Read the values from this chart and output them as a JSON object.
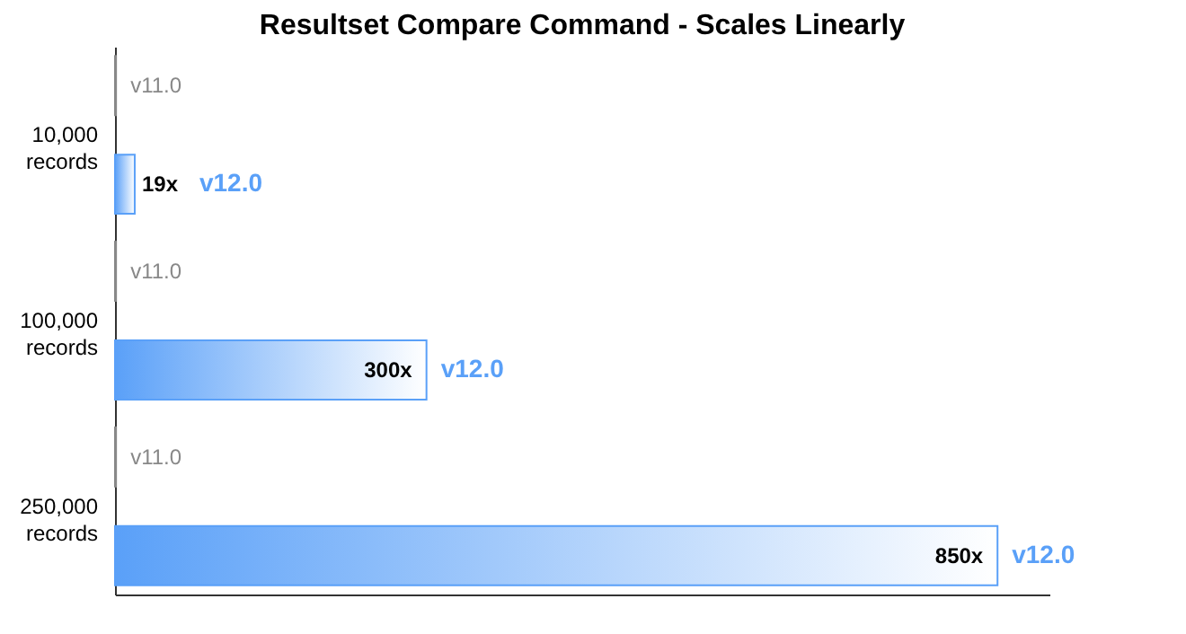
{
  "chart_data": {
    "type": "bar",
    "orientation": "horizontal",
    "title": "Resultset Compare Command -  Scales Linearly",
    "categories": [
      "10,000 records",
      "100,000 records",
      "250,000 records"
    ],
    "series": [
      {
        "name": "v11.0",
        "color": "#888888",
        "values": [
          1,
          1,
          1
        ]
      },
      {
        "name": "v12.0",
        "color": "#5aa0f8",
        "values": [
          19,
          300,
          850
        ],
        "value_labels": [
          "19x",
          "300x",
          "850x"
        ]
      }
    ]
  }
}
